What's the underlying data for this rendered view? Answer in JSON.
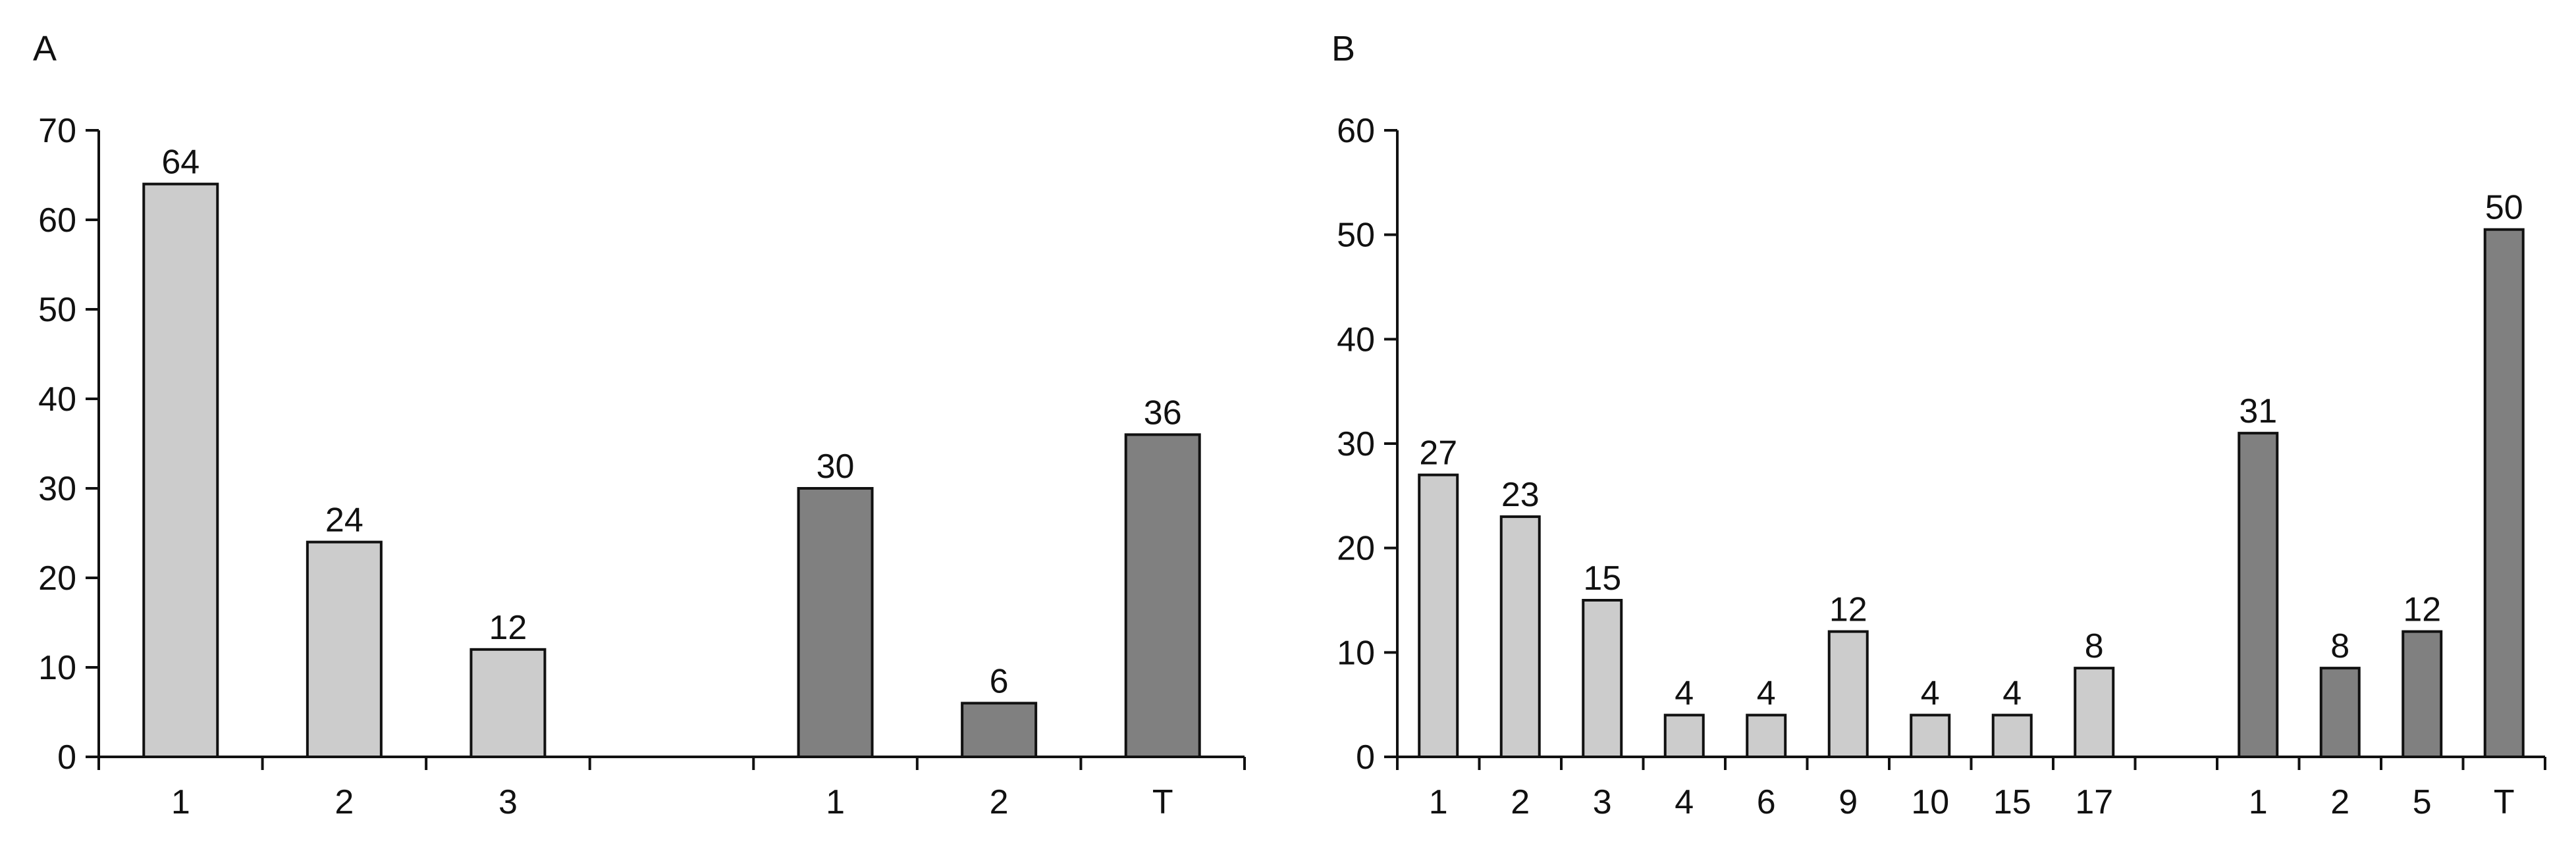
{
  "chart_data": [
    {
      "type": "bar",
      "panel_label": "A",
      "title": "",
      "xlabel": "",
      "ylabel": "",
      "ylim": [
        0,
        70
      ],
      "yticks": [
        0,
        10,
        20,
        30,
        40,
        50,
        60,
        70
      ],
      "grid": false,
      "legend": "none",
      "slots": [
        "1",
        "2",
        "3",
        "",
        "1",
        "2",
        "T"
      ],
      "values": [
        64,
        24,
        12,
        null,
        30,
        6,
        36
      ],
      "data_labels": [
        "64",
        "24",
        "12",
        "",
        "30",
        "6",
        "36"
      ],
      "bar_colors": [
        "#cccccc",
        "#cccccc",
        "#cccccc",
        null,
        "#808080",
        "#808080",
        "#808080"
      ]
    },
    {
      "type": "bar",
      "panel_label": "B",
      "title": "",
      "xlabel": "",
      "ylabel": "",
      "ylim": [
        0,
        60
      ],
      "yticks": [
        0,
        10,
        20,
        30,
        40,
        50,
        60
      ],
      "grid": false,
      "legend": "none",
      "slots": [
        "1",
        "2",
        "3",
        "4",
        "6",
        "9",
        "10",
        "15",
        "17",
        "",
        "1",
        "2",
        "5",
        "T"
      ],
      "values": [
        27,
        23,
        15,
        4,
        4,
        12,
        4,
        4,
        8.5,
        null,
        31,
        8.5,
        12,
        50.5
      ],
      "data_labels": [
        "27",
        "23",
        "15",
        "4",
        "4",
        "12",
        "4",
        "4",
        "8",
        "",
        "31",
        "8",
        "12",
        "50"
      ],
      "bar_colors": [
        "#cccccc",
        "#cccccc",
        "#cccccc",
        "#cccccc",
        "#cccccc",
        "#cccccc",
        "#cccccc",
        "#cccccc",
        "#cccccc",
        null,
        "#808080",
        "#808080",
        "#808080",
        "#808080"
      ]
    }
  ]
}
